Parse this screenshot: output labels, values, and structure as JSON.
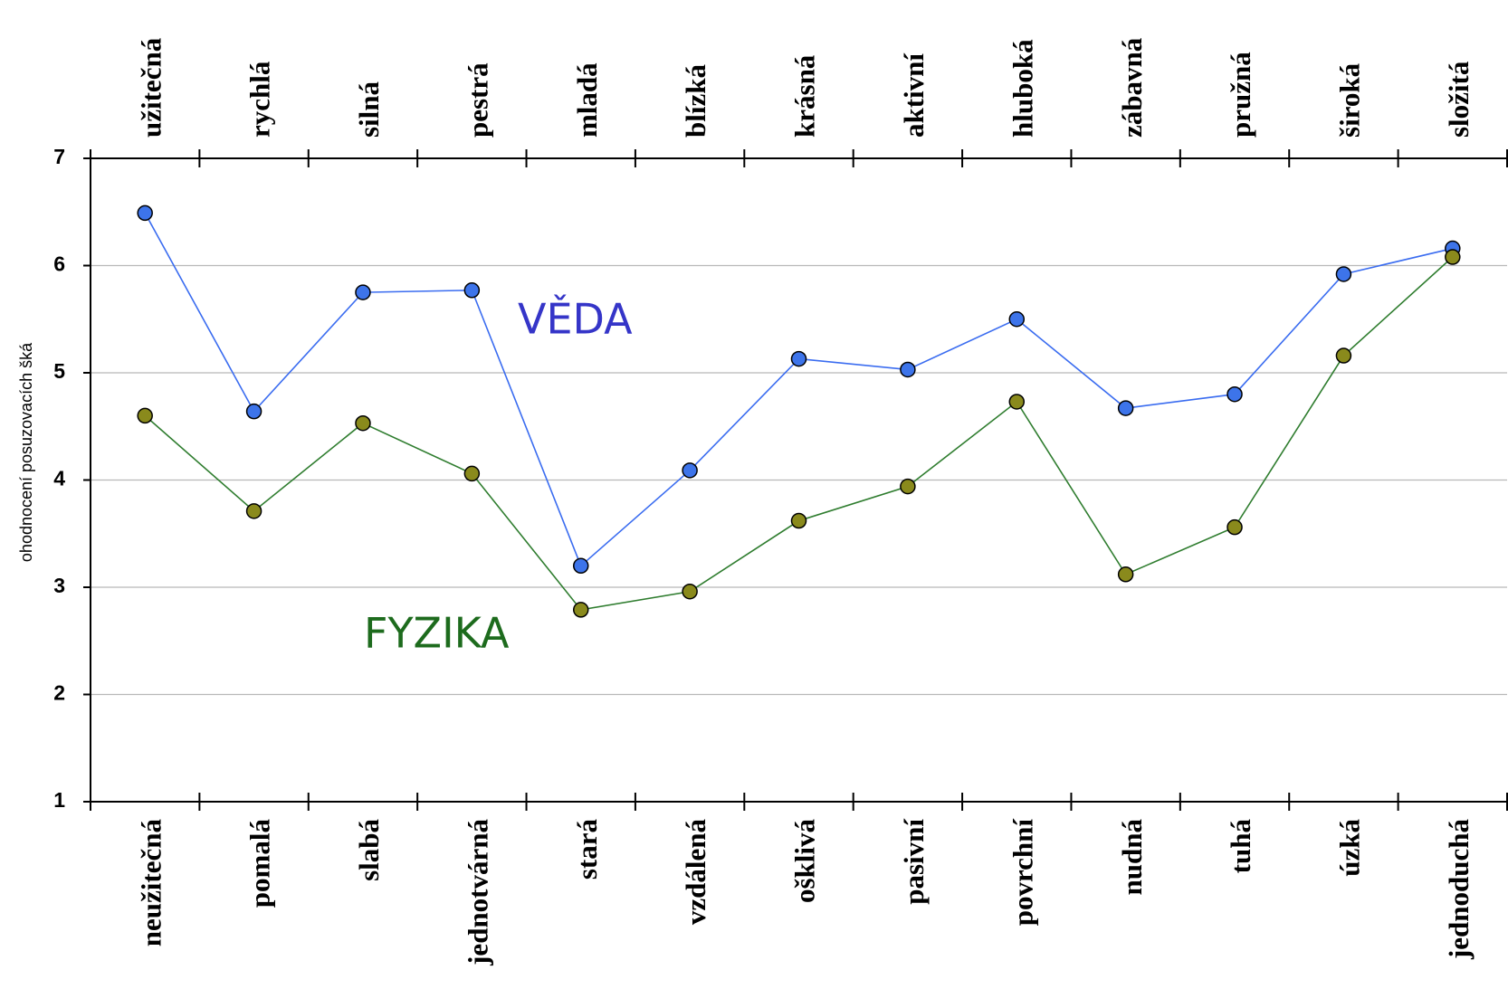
{
  "chart_data": {
    "type": "line",
    "ylabel": "ohodnocení posuzovacích šká",
    "categories": [
      "neužitečná",
      "pomalá",
      "slabá",
      "jednotvárná",
      "stará",
      "vzdálená",
      "ošklivá",
      "pasivní",
      "povrchní",
      "nudná",
      "tuhá",
      "úzká",
      "jednoduchá"
    ],
    "top_categories": [
      "užitečná",
      "rychlá",
      "silná",
      "pestrá",
      "mladá",
      "blízká",
      "krásná",
      "aktivní",
      "hluboká",
      "zábavná",
      "pružná",
      "široká",
      "složitá"
    ],
    "series": [
      {
        "name": "VĚDA",
        "color": "#3a6cf0",
        "marker_color": "#3d74ea",
        "label_color": "#3535c8",
        "values": [
          6.49,
          4.64,
          5.75,
          5.77,
          3.2,
          4.09,
          5.13,
          5.03,
          5.5,
          4.67,
          4.8,
          5.92,
          6.16
        ]
      },
      {
        "name": "FYZIKA",
        "color": "#2f7d2f",
        "marker_color": "#8a8a1c",
        "label_color": "#1d6b1d",
        "values": [
          4.6,
          3.71,
          4.53,
          4.06,
          2.79,
          2.96,
          3.62,
          3.94,
          4.73,
          3.12,
          3.56,
          5.16,
          6.08
        ]
      }
    ],
    "ylim": [
      1,
      7
    ],
    "yticks": [
      1,
      2,
      3,
      4,
      5,
      6,
      7
    ],
    "grid": true
  }
}
